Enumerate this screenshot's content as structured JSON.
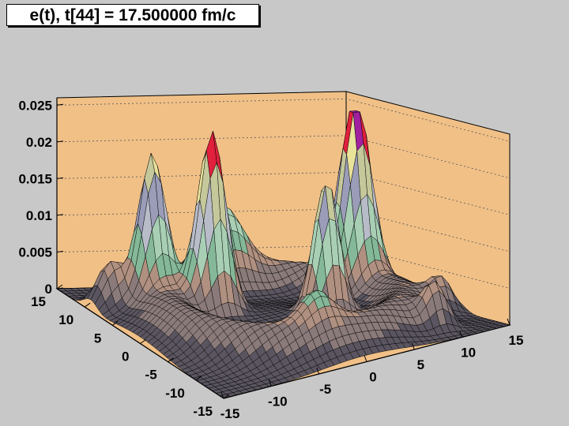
{
  "title": "e(t), t[44] = 17.500000 fm/c",
  "colors": {
    "background": "#c8c8c8",
    "frame_fill": "#f0c087",
    "grid": "#555555",
    "mesh_line": "#000000",
    "palette": [
      "#5a5560",
      "#8a7a7a",
      "#b09080",
      "#84b898",
      "#a8cfb4",
      "#b8bcc8",
      "#9a9cb8",
      "#c4c89a",
      "#e8e29a",
      "#e0203c",
      "#a020a0"
    ]
  },
  "chart_data": {
    "type": "surface",
    "title": "e(t), t[44] = 17.500000 fm/c",
    "xlabel": "",
    "ylabel": "",
    "zlabel": "",
    "xlim": [
      -15,
      15
    ],
    "ylim": [
      -15,
      15
    ],
    "zlim": [
      0,
      0.026
    ],
    "x_ticks": [
      -15,
      -10,
      -5,
      0,
      5,
      10,
      15
    ],
    "y_ticks": [
      -15,
      -10,
      -5,
      0,
      5,
      10,
      15
    ],
    "z_ticks": [
      0,
      0.005,
      0.01,
      0.015,
      0.02,
      0.025
    ],
    "x_tick_labels": [
      "-15",
      "-10",
      "-5",
      "0",
      "5",
      "10",
      "15"
    ],
    "y_tick_labels": [
      "-15",
      "-10",
      "-5",
      "0",
      "5",
      "10",
      "15"
    ],
    "z_tick_labels": [
      "0",
      "0.005",
      "0.01",
      "0.015",
      "0.02",
      "0.025"
    ],
    "grid": true,
    "peaks": [
      {
        "x": -5.5,
        "y": 3.5,
        "height": 0.0245,
        "width": 1.3
      },
      {
        "x": -9.5,
        "y": 7.5,
        "height": 0.0175,
        "width": 1.2
      },
      {
        "x": 10,
        "y": 4.5,
        "height": 0.0235,
        "width": 1.4
      },
      {
        "x": 3,
        "y": -2.5,
        "height": 0.0185,
        "width": 1.2
      },
      {
        "x": 0,
        "y": 11,
        "height": 0.0075,
        "width": 1.8
      },
      {
        "x": -13,
        "y": 9,
        "height": 0.006,
        "width": 1.2
      },
      {
        "x": -2,
        "y": -9,
        "height": 0.0045,
        "width": 1.5
      },
      {
        "x": 9.5,
        "y": -11,
        "height": 0.0055,
        "width": 1.1
      },
      {
        "x": 13,
        "y": -6,
        "height": 0.004,
        "width": 1.1
      }
    ],
    "ring": {
      "radius": 11,
      "height": 0.0045,
      "width": 2.2
    }
  }
}
